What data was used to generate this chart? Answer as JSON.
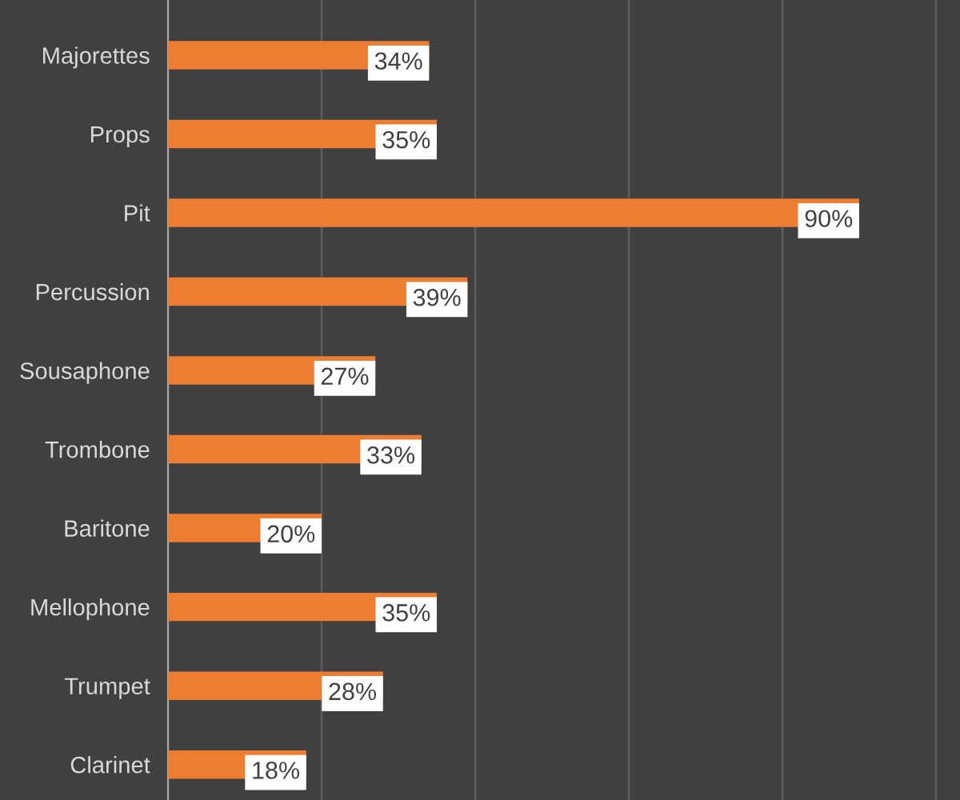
{
  "chart_data": {
    "type": "bar",
    "orientation": "horizontal",
    "categories": [
      "Majorettes",
      "Props",
      "Pit",
      "Percussion",
      "Sousaphone",
      "Trombone",
      "Baritone",
      "Mellophone",
      "Trumpet",
      "Clarinet"
    ],
    "values": [
      34,
      35,
      90,
      39,
      27,
      33,
      20,
      35,
      28,
      18
    ],
    "value_labels": [
      "34%",
      "35%",
      "90%",
      "39%",
      "27%",
      "33%",
      "20%",
      "35%",
      "28%",
      "18%"
    ],
    "color": "#ed7d31",
    "xlim": [
      0,
      100
    ],
    "xticks": [
      {
        "value": 0,
        "label": null
      },
      {
        "value": 20,
        "label": null
      },
      {
        "value": 40,
        "label": null
      },
      {
        "value": 60,
        "label": null
      },
      {
        "value": 80,
        "label": null
      },
      {
        "value": 100,
        "label": null
      }
    ],
    "tick_labels": "y",
    "grid": "x"
  }
}
